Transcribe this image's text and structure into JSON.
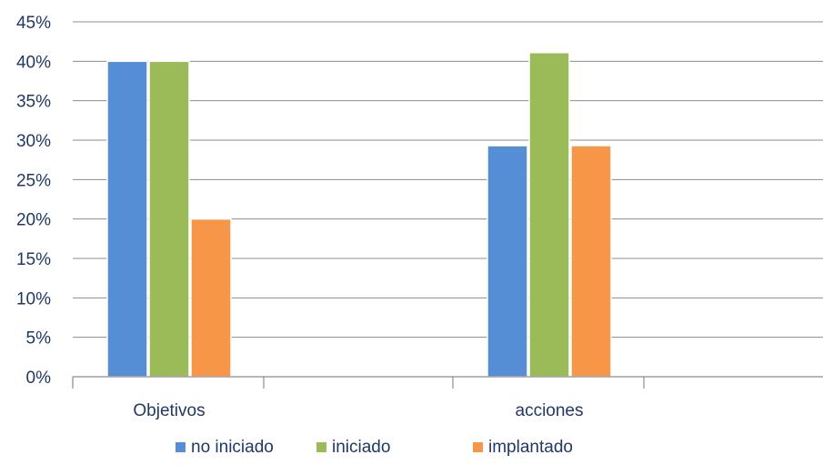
{
  "chart_data": {
    "type": "bar",
    "categories": [
      "Objetivos",
      "acciones"
    ],
    "series": [
      {
        "name": "no iniciado",
        "values": [
          40,
          29.3
        ],
        "color": "#558ed5"
      },
      {
        "name": "iniciado",
        "values": [
          40,
          41.1
        ],
        "color": "#9bbb59"
      },
      {
        "name": "implantado",
        "values": [
          20,
          29.3
        ],
        "color": "#f79646"
      }
    ],
    "y_ticks": [
      "0%",
      "5%",
      "10%",
      "15%",
      "20%",
      "25%",
      "30%",
      "35%",
      "40%",
      "45%"
    ],
    "ylim": [
      0,
      45
    ],
    "grid": true,
    "legend_position": "bottom"
  }
}
